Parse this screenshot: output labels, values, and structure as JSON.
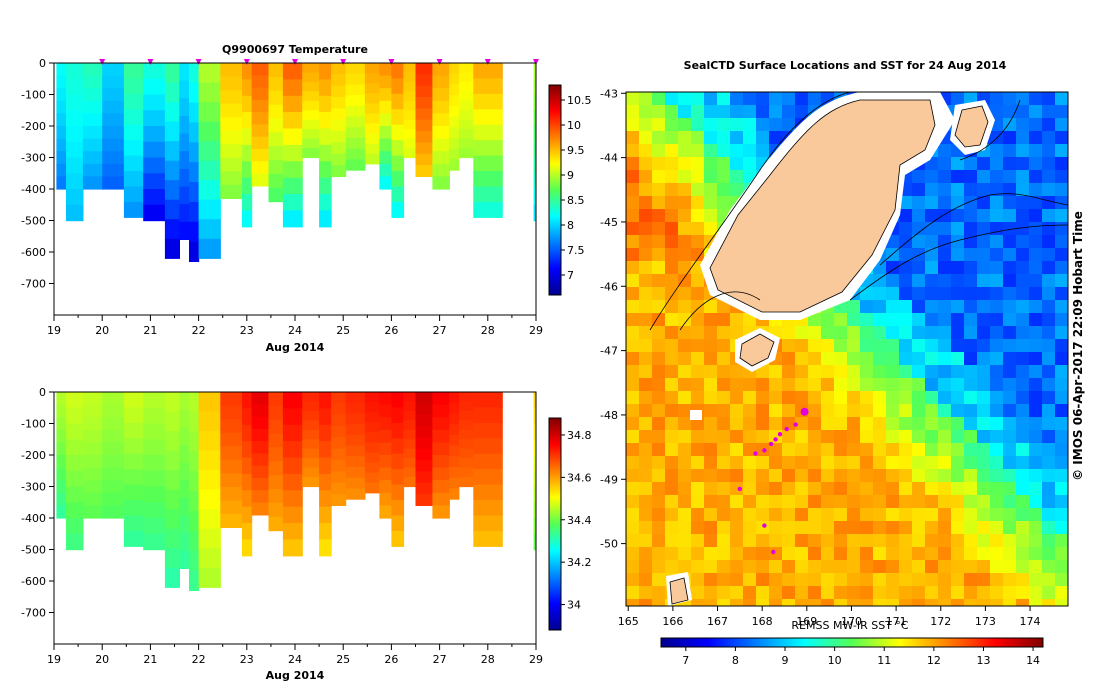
{
  "chart_data": [
    {
      "id": "temp",
      "type": "heatmap",
      "title": "Q9900697  Temperature",
      "xlabel": "Aug 2014",
      "x_ticks": [
        "19",
        "20",
        "21",
        "22",
        "23",
        "24",
        "25",
        "26",
        "27",
        "28",
        "29"
      ],
      "xlim": [
        19,
        29
      ],
      "ylim": [
        0,
        -800
      ],
      "y_ticks": [
        "0",
        "-100",
        "-200",
        "-300",
        "-400",
        "-500",
        "-600",
        "-700"
      ],
      "colorbar": {
        "range": [
          6.6,
          10.8
        ],
        "ticks": [
          "10.5",
          "10",
          "9.5",
          "9",
          "8.5",
          "8",
          "7.5",
          "7"
        ]
      },
      "marker_days": [
        20,
        21,
        22,
        23,
        24,
        25,
        26,
        27,
        28,
        29
      ],
      "profiles": [
        {
          "start": 19.05,
          "end": 19.25,
          "depth": 400,
          "surface": 8.2,
          "bottom": 7.6
        },
        {
          "start": 19.25,
          "end": 19.6,
          "depth": 500,
          "surface": 8.3,
          "bottom": 7.9
        },
        {
          "start": 19.6,
          "end": 20.0,
          "depth": 400,
          "surface": 8.4,
          "bottom": 7.7
        },
        {
          "start": 20.0,
          "end": 20.45,
          "depth": 400,
          "surface": 8.0,
          "bottom": 7.5
        },
        {
          "start": 20.45,
          "end": 20.85,
          "depth": 490,
          "surface": 8.5,
          "bottom": 7.7
        },
        {
          "start": 20.85,
          "end": 21.3,
          "depth": 500,
          "surface": 8.3,
          "bottom": 7.0
        },
        {
          "start": 21.3,
          "end": 21.6,
          "depth": 620,
          "surface": 8.5,
          "bottom": 6.9
        },
        {
          "start": 21.6,
          "end": 21.8,
          "depth": 560,
          "surface": 8.1,
          "bottom": 7.1
        },
        {
          "start": 21.8,
          "end": 22.0,
          "depth": 630,
          "surface": 8.3,
          "bottom": 6.9
        },
        {
          "start": 22.0,
          "end": 22.45,
          "depth": 620,
          "surface": 9.0,
          "bottom": 7.7
        },
        {
          "start": 22.45,
          "end": 22.9,
          "depth": 430,
          "surface": 9.5,
          "bottom": 8.8
        },
        {
          "start": 22.9,
          "end": 23.1,
          "depth": 520,
          "surface": 9.7,
          "bottom": 8.1
        },
        {
          "start": 23.1,
          "end": 23.45,
          "depth": 390,
          "surface": 9.9,
          "bottom": 9.1
        },
        {
          "start": 23.45,
          "end": 23.75,
          "depth": 440,
          "surface": 9.5,
          "bottom": 8.6
        },
        {
          "start": 23.75,
          "end": 24.15,
          "depth": 520,
          "surface": 9.9,
          "bottom": 8.0
        },
        {
          "start": 24.15,
          "end": 24.5,
          "depth": 300,
          "surface": 9.6,
          "bottom": 8.8
        },
        {
          "start": 24.5,
          "end": 24.75,
          "depth": 520,
          "surface": 9.7,
          "bottom": 8.0
        },
        {
          "start": 24.75,
          "end": 25.05,
          "depth": 360,
          "surface": 9.5,
          "bottom": 8.8
        },
        {
          "start": 25.05,
          "end": 25.45,
          "depth": 340,
          "surface": 9.4,
          "bottom": 8.7
        },
        {
          "start": 25.45,
          "end": 25.75,
          "depth": 320,
          "surface": 9.6,
          "bottom": 9.0
        },
        {
          "start": 25.75,
          "end": 26.0,
          "depth": 400,
          "surface": 9.7,
          "bottom": 8.1
        },
        {
          "start": 26.0,
          "end": 26.25,
          "depth": 490,
          "surface": 9.8,
          "bottom": 8.1
        },
        {
          "start": 26.25,
          "end": 26.5,
          "depth": 300,
          "surface": 9.5,
          "bottom": 9.1
        },
        {
          "start": 26.5,
          "end": 26.85,
          "depth": 360,
          "surface": 10.1,
          "bottom": 9.4
        },
        {
          "start": 26.85,
          "end": 27.2,
          "depth": 400,
          "surface": 9.6,
          "bottom": 8.8
        },
        {
          "start": 27.2,
          "end": 27.4,
          "depth": 340,
          "surface": 9.4,
          "bottom": 8.9
        },
        {
          "start": 27.4,
          "end": 27.7,
          "depth": 300,
          "surface": 9.3,
          "bottom": 8.9
        },
        {
          "start": 27.7,
          "end": 28.3,
          "depth": 490,
          "surface": 9.6,
          "bottom": 8.2
        },
        {
          "start": 28.95,
          "end": 29.05,
          "depth": 500,
          "surface": 9.0,
          "bottom": 8.0
        }
      ]
    },
    {
      "id": "sal",
      "type": "heatmap",
      "xlabel": "Aug 2014",
      "x_ticks": [
        "19",
        "20",
        "21",
        "22",
        "23",
        "24",
        "25",
        "26",
        "27",
        "28",
        "29"
      ],
      "xlim": [
        19,
        29
      ],
      "ylim": [
        0,
        -800
      ],
      "y_ticks": [
        "0",
        "-100",
        "-200",
        "-300",
        "-400",
        "-500",
        "-600",
        "-700"
      ],
      "colorbar": {
        "range": [
          33.88,
          34.88
        ],
        "ticks": [
          "34.8",
          "34.6",
          "34.4",
          "34.2",
          "34"
        ]
      },
      "profiles": [
        {
          "start": 19.05,
          "end": 19.25,
          "depth": 400,
          "surface": 34.45,
          "bottom": 34.32
        },
        {
          "start": 19.25,
          "end": 19.6,
          "depth": 500,
          "surface": 34.47,
          "bottom": 34.34
        },
        {
          "start": 19.6,
          "end": 20.0,
          "depth": 400,
          "surface": 34.46,
          "bottom": 34.38
        },
        {
          "start": 20.0,
          "end": 20.45,
          "depth": 400,
          "surface": 34.44,
          "bottom": 34.37
        },
        {
          "start": 20.45,
          "end": 20.85,
          "depth": 490,
          "surface": 34.47,
          "bottom": 34.32
        },
        {
          "start": 20.85,
          "end": 21.3,
          "depth": 500,
          "surface": 34.45,
          "bottom": 34.33
        },
        {
          "start": 21.3,
          "end": 21.6,
          "depth": 620,
          "surface": 34.46,
          "bottom": 34.31
        },
        {
          "start": 21.6,
          "end": 21.8,
          "depth": 560,
          "surface": 34.44,
          "bottom": 34.32
        },
        {
          "start": 21.8,
          "end": 22.0,
          "depth": 630,
          "surface": 34.45,
          "bottom": 34.33
        },
        {
          "start": 22.0,
          "end": 22.45,
          "depth": 620,
          "surface": 34.56,
          "bottom": 34.44
        },
        {
          "start": 22.45,
          "end": 22.9,
          "depth": 430,
          "surface": 34.7,
          "bottom": 34.57
        },
        {
          "start": 22.9,
          "end": 23.1,
          "depth": 520,
          "surface": 34.74,
          "bottom": 34.53
        },
        {
          "start": 23.1,
          "end": 23.45,
          "depth": 390,
          "surface": 34.78,
          "bottom": 34.62
        },
        {
          "start": 23.45,
          "end": 23.75,
          "depth": 440,
          "surface": 34.7,
          "bottom": 34.58
        },
        {
          "start": 23.75,
          "end": 24.15,
          "depth": 520,
          "surface": 34.76,
          "bottom": 34.55
        },
        {
          "start": 24.15,
          "end": 24.5,
          "depth": 300,
          "surface": 34.72,
          "bottom": 34.6
        },
        {
          "start": 24.5,
          "end": 24.75,
          "depth": 520,
          "surface": 34.74,
          "bottom": 34.52
        },
        {
          "start": 24.75,
          "end": 25.05,
          "depth": 360,
          "surface": 34.7,
          "bottom": 34.6
        },
        {
          "start": 25.05,
          "end": 25.45,
          "depth": 340,
          "surface": 34.72,
          "bottom": 34.61
        },
        {
          "start": 25.45,
          "end": 25.75,
          "depth": 320,
          "surface": 34.74,
          "bottom": 34.64
        },
        {
          "start": 25.75,
          "end": 26.0,
          "depth": 400,
          "surface": 34.75,
          "bottom": 34.58
        },
        {
          "start": 26.0,
          "end": 26.25,
          "depth": 490,
          "surface": 34.76,
          "bottom": 34.55
        },
        {
          "start": 26.25,
          "end": 26.5,
          "depth": 300,
          "surface": 34.74,
          "bottom": 34.64
        },
        {
          "start": 26.5,
          "end": 26.85,
          "depth": 360,
          "surface": 34.8,
          "bottom": 34.7
        },
        {
          "start": 26.85,
          "end": 27.2,
          "depth": 400,
          "surface": 34.76,
          "bottom": 34.6
        },
        {
          "start": 27.2,
          "end": 27.4,
          "depth": 340,
          "surface": 34.74,
          "bottom": 34.62
        },
        {
          "start": 27.4,
          "end": 27.7,
          "depth": 300,
          "surface": 34.72,
          "bottom": 34.64
        },
        {
          "start": 27.7,
          "end": 28.3,
          "depth": 490,
          "surface": 34.72,
          "bottom": 34.56
        },
        {
          "start": 28.95,
          "end": 29.05,
          "depth": 500,
          "surface": 34.55,
          "bottom": 34.38
        }
      ]
    },
    {
      "id": "map",
      "type": "heatmap",
      "title": "SealCTD Surface Locations and SST for 24 Aug 2014",
      "x_ticks": [
        "165",
        "166",
        "167",
        "168",
        "169",
        "170",
        "171",
        "172",
        "173",
        "174"
      ],
      "xlim": [
        164.95,
        174.85
      ],
      "y_ticks": [
        "-43",
        "-44",
        "-45",
        "-46",
        "-47",
        "-48",
        "-49",
        "-50"
      ],
      "ylim": [
        -42.98,
        -50.97
      ],
      "colorbar": {
        "label": "REMSS MW-IR SST °C",
        "range": [
          6.5,
          14.2
        ],
        "ticks": [
          "7",
          "8",
          "9",
          "10",
          "11",
          "12",
          "13",
          "14"
        ]
      },
      "sst_field": {
        "west": 11.9,
        "shelf": 10.0,
        "east": 8.3
      },
      "land_color": "#f9c89b",
      "seal_locations": [
        {
          "lon": 168.95,
          "lat": -47.95
        },
        {
          "lon": 168.75,
          "lat": -48.15
        },
        {
          "lon": 168.55,
          "lat": -48.22
        },
        {
          "lon": 168.4,
          "lat": -48.3
        },
        {
          "lon": 168.3,
          "lat": -48.38
        },
        {
          "lon": 168.2,
          "lat": -48.45
        },
        {
          "lon": 168.05,
          "lat": -48.55
        },
        {
          "lon": 167.85,
          "lat": -48.6
        },
        {
          "lon": 167.5,
          "lat": -49.15
        },
        {
          "lon": 168.05,
          "lat": -49.72
        },
        {
          "lon": 168.25,
          "lat": -50.13
        }
      ]
    }
  ],
  "credit": "© IMOS 06-Apr-2017 22:09 Hobart Time",
  "colors": {
    "marker": "#e000e0",
    "land": "#f9c89b"
  }
}
